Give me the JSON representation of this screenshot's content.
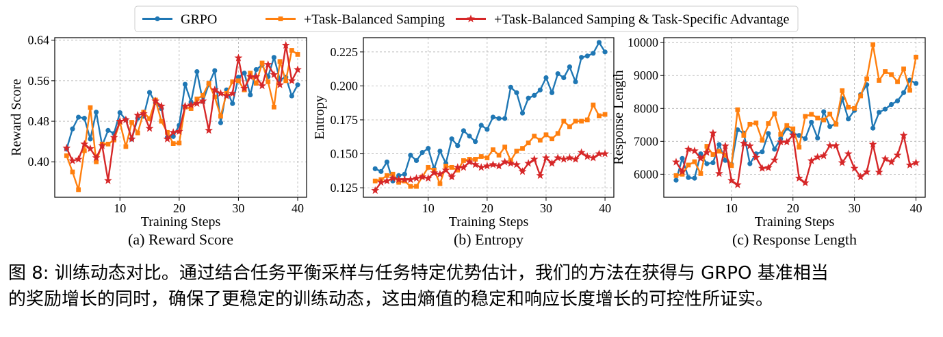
{
  "legend": {
    "entries": [
      {
        "label": "GRPO",
        "color": "#1f77b4",
        "marker": "circle"
      },
      {
        "label": "+Task-Balanced Samping",
        "color": "#ff7f0e",
        "marker": "square"
      },
      {
        "label": "+Task-Balanced Samping & Task-Specific Advantage",
        "color": "#d62728",
        "marker": "star"
      }
    ]
  },
  "caption": {
    "line1": "图 8: 训练动态对比。通过结合任务平衡采样与任务特定优势估计，我们的方法在获得与 GRPO 基准相当",
    "line2": "的奖励增长的同时，确保了更稳定的训练动态，这由熵值的稳定和响应长度增长的可控性所证实。"
  },
  "chart_data": [
    {
      "type": "line",
      "title": "(a) Reward Score",
      "xlabel": "Training Steps",
      "ylabel": "Reward Score",
      "xlim": [
        -1,
        41.5
      ],
      "ylim": [
        0.33,
        0.645
      ],
      "xticks": [
        10,
        20,
        30,
        40
      ],
      "yticks": [
        0.4,
        0.48,
        0.56,
        0.64
      ],
      "ytick_labels": [
        "0.40",
        "0.48",
        "0.56",
        "0.64"
      ],
      "grid": true,
      "x": [
        1,
        2,
        3,
        4,
        5,
        6,
        7,
        8,
        9,
        10,
        11,
        12,
        13,
        14,
        15,
        16,
        17,
        18,
        19,
        20,
        21,
        22,
        23,
        24,
        25,
        26,
        27,
        28,
        29,
        30,
        31,
        32,
        33,
        34,
        35,
        36,
        37,
        38,
        39,
        40
      ],
      "series": [
        {
          "name": "GRPO",
          "values": [
            0.425,
            0.465,
            0.488,
            0.486,
            0.445,
            0.498,
            0.432,
            0.462,
            0.456,
            0.497,
            0.483,
            0.445,
            0.486,
            0.49,
            0.537,
            0.517,
            0.505,
            0.448,
            0.45,
            0.472,
            0.553,
            0.518,
            0.578,
            0.519,
            0.553,
            0.58,
            0.477,
            0.542,
            0.515,
            0.567,
            0.575,
            0.532,
            0.582,
            0.591,
            0.568,
            0.606,
            0.562,
            0.567,
            0.53,
            0.552
          ]
        },
        {
          "name": "+Task-Balanced Samping",
          "values": [
            0.412,
            0.38,
            0.345,
            0.422,
            0.507,
            0.4,
            0.435,
            0.435,
            0.443,
            0.478,
            0.43,
            0.478,
            0.457,
            0.498,
            0.485,
            0.522,
            0.48,
            0.458,
            0.436,
            0.437,
            0.508,
            0.505,
            0.524,
            0.531,
            0.555,
            0.528,
            0.49,
            0.535,
            0.558,
            0.56,
            0.542,
            0.575,
            0.555,
            0.595,
            0.558,
            0.508,
            0.598,
            0.56,
            0.62,
            0.612
          ]
        },
        {
          "name": "+Task-Balanced Samping & Task-Specific Advantage",
          "values": [
            0.427,
            0.402,
            0.405,
            0.435,
            0.426,
            0.408,
            0.432,
            0.363,
            0.448,
            0.48,
            0.483,
            0.445,
            0.492,
            0.495,
            0.466,
            0.52,
            0.51,
            0.445,
            0.458,
            0.46,
            0.51,
            0.512,
            0.515,
            0.52,
            0.462,
            0.542,
            0.535,
            0.53,
            0.535,
            0.605,
            0.545,
            0.568,
            0.568,
            0.55,
            0.592,
            0.572,
            0.552,
            0.63,
            0.56,
            0.582
          ]
        }
      ]
    },
    {
      "type": "line",
      "title": "(b) Entropy",
      "xlabel": "Training Steps",
      "ylabel": "Entropy",
      "xlim": [
        -1,
        41.5
      ],
      "ylim": [
        0.118,
        0.2355
      ],
      "xticks": [
        10,
        20,
        30,
        40
      ],
      "yticks": [
        0.125,
        0.15,
        0.175,
        0.2,
        0.225
      ],
      "ytick_labels": [
        "0.125",
        "0.150",
        "0.175",
        "0.200",
        "0.225"
      ],
      "grid": true,
      "x": [
        1,
        2,
        3,
        4,
        5,
        6,
        7,
        8,
        9,
        10,
        11,
        12,
        13,
        14,
        15,
        16,
        17,
        18,
        19,
        20,
        21,
        22,
        23,
        24,
        25,
        26,
        27,
        28,
        29,
        30,
        31,
        32,
        33,
        34,
        35,
        36,
        37,
        38,
        39,
        40
      ],
      "series": [
        {
          "name": "GRPO",
          "values": [
            0.139,
            0.137,
            0.144,
            0.13,
            0.134,
            0.135,
            0.149,
            0.145,
            0.151,
            0.154,
            0.139,
            0.152,
            0.143,
            0.161,
            0.156,
            0.167,
            0.163,
            0.159,
            0.171,
            0.168,
            0.177,
            0.176,
            0.176,
            0.199,
            0.195,
            0.18,
            0.191,
            0.193,
            0.197,
            0.206,
            0.195,
            0.209,
            0.206,
            0.214,
            0.203,
            0.221,
            0.222,
            0.224,
            0.232,
            0.225
          ]
        },
        {
          "name": "+Task-Balanced Samping",
          "values": [
            0.13,
            0.131,
            0.134,
            0.135,
            0.129,
            0.13,
            0.126,
            0.126,
            0.133,
            0.14,
            0.138,
            0.128,
            0.141,
            0.14,
            0.138,
            0.145,
            0.146,
            0.146,
            0.148,
            0.147,
            0.153,
            0.149,
            0.155,
            0.145,
            0.152,
            0.154,
            0.158,
            0.163,
            0.16,
            0.164,
            0.161,
            0.165,
            0.174,
            0.17,
            0.174,
            0.174,
            0.175,
            0.186,
            0.178,
            0.179
          ]
        },
        {
          "name": "+Task-Balanced Samping & Task-Specific Advantage",
          "values": [
            0.123,
            0.129,
            0.13,
            0.132,
            0.131,
            0.131,
            0.131,
            0.132,
            0.133,
            0.132,
            0.136,
            0.135,
            0.138,
            0.133,
            0.14,
            0.14,
            0.144,
            0.142,
            0.14,
            0.141,
            0.142,
            0.141,
            0.144,
            0.143,
            0.142,
            0.137,
            0.143,
            0.146,
            0.134,
            0.147,
            0.143,
            0.147,
            0.146,
            0.147,
            0.146,
            0.151,
            0.148,
            0.147,
            0.15,
            0.15
          ]
        }
      ]
    },
    {
      "type": "line",
      "title": "(c) Response Length",
      "xlabel": "Training Steps",
      "ylabel": "Response Length",
      "xlim": [
        -1,
        41.5
      ],
      "ylim": [
        5300,
        10150
      ],
      "xticks": [
        10,
        20,
        30,
        40
      ],
      "yticks": [
        6000,
        7000,
        8000,
        9000,
        10000
      ],
      "ytick_labels": [
        "6000",
        "7000",
        "8000",
        "9000",
        "10000"
      ],
      "grid": true,
      "x": [
        1,
        2,
        3,
        4,
        5,
        6,
        7,
        8,
        9,
        10,
        11,
        12,
        13,
        14,
        15,
        16,
        17,
        18,
        19,
        20,
        21,
        22,
        23,
        24,
        25,
        26,
        27,
        28,
        29,
        30,
        31,
        32,
        33,
        34,
        35,
        36,
        37,
        38,
        39,
        40
      ],
      "series": [
        {
          "name": "GRPO",
          "values": [
            5820,
            6480,
            5900,
            5880,
            6620,
            6320,
            6350,
            6900,
            6420,
            6300,
            7350,
            7250,
            6320,
            6620,
            6680,
            7240,
            6760,
            7080,
            7400,
            7250,
            7180,
            7080,
            7580,
            7100,
            7900,
            7450,
            7540,
            8300,
            7680,
            7940,
            8420,
            8720,
            7400,
            7880,
            7980,
            8120,
            8230,
            8480,
            8860,
            8760
          ]
        },
        {
          "name": "+Task-Balanced Samping",
          "values": [
            5960,
            6000,
            6280,
            6380,
            6020,
            6850,
            6600,
            6700,
            6580,
            6260,
            7960,
            7180,
            7520,
            7560,
            7030,
            7540,
            7840,
            7210,
            7480,
            7380,
            6820,
            7760,
            7820,
            7710,
            7650,
            7830,
            7520,
            8540,
            8040,
            8000,
            8380,
            8900,
            9940,
            8850,
            9120,
            9030,
            8810,
            9200,
            8550,
            9560
          ]
        },
        {
          "name": "+Task-Balanced Samping & Task-Specific Advantage",
          "values": [
            6370,
            6080,
            6760,
            6710,
            6480,
            6660,
            7250,
            6020,
            6860,
            5810,
            5680,
            6940,
            6860,
            6510,
            6180,
            6200,
            6430,
            6980,
            6980,
            7190,
            5880,
            5740,
            6410,
            6520,
            6560,
            6870,
            6870,
            6350,
            6620,
            6180,
            5920,
            6070,
            6910,
            6060,
            6470,
            6370,
            6580,
            7180,
            6280,
            6350
          ]
        }
      ]
    }
  ]
}
